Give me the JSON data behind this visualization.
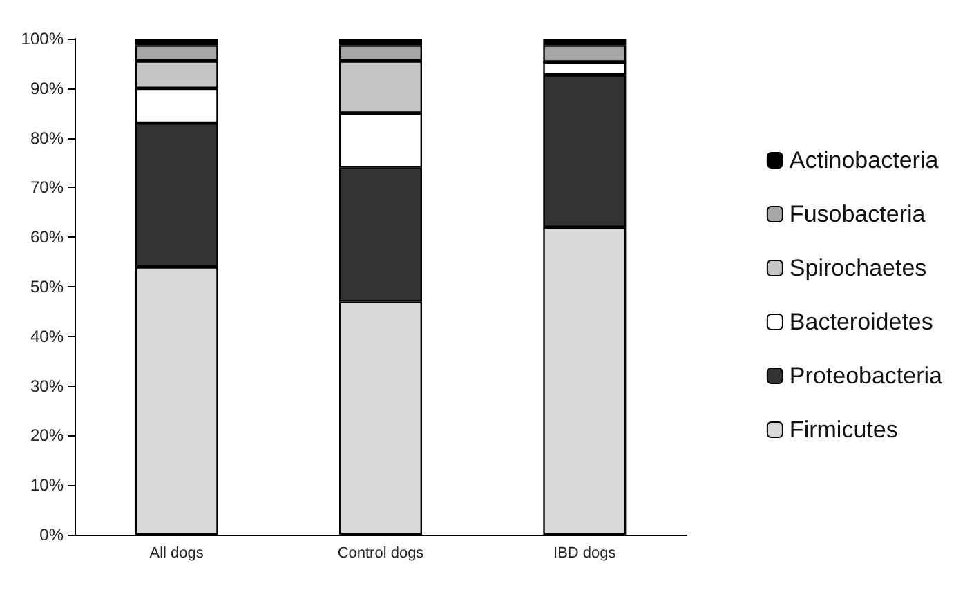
{
  "chart_data": {
    "type": "bar",
    "stacked": true,
    "categories": [
      "All dogs",
      "Control dogs",
      "IBD dogs"
    ],
    "series": [
      {
        "name": "Firmicutes",
        "color": "#d9d9d9",
        "values": [
          54,
          47,
          62
        ]
      },
      {
        "name": "Proteobacteria",
        "color": "#333333",
        "values": [
          29,
          27,
          30.7
        ]
      },
      {
        "name": "Bacteroidetes",
        "color": "#ffffff",
        "values": [
          7,
          11,
          2.6
        ]
      },
      {
        "name": "Spirochaetes",
        "color": "#c4c4c4",
        "values": [
          5.5,
          10.5,
          0
        ]
      },
      {
        "name": "Fusobacteria",
        "color": "#a6a6a6",
        "values": [
          3.2,
          3.2,
          3.4
        ]
      },
      {
        "name": "Actinobacteria",
        "color": "#000000",
        "values": [
          1.3,
          1.3,
          1.3
        ]
      }
    ],
    "ylim": [
      0,
      100
    ],
    "yticks": [
      {
        "value": 0,
        "label": "0%"
      },
      {
        "value": 10,
        "label": "10%"
      },
      {
        "value": 20,
        "label": "20%"
      },
      {
        "value": 30,
        "label": "30%"
      },
      {
        "value": 40,
        "label": "40%"
      },
      {
        "value": 50,
        "label": "50%"
      },
      {
        "value": 60,
        "label": "60%"
      },
      {
        "value": 70,
        "label": "70%"
      },
      {
        "value": 80,
        "label": "80%"
      },
      {
        "value": 90,
        "label": "90%"
      },
      {
        "value": 100,
        "label": "100%"
      }
    ],
    "grid": false,
    "legend": "right"
  }
}
